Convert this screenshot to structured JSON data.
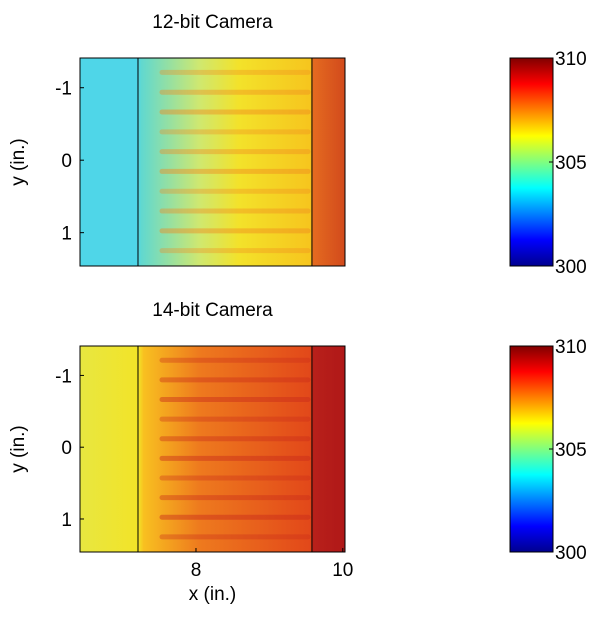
{
  "chart_data": [
    {
      "type": "heatmap",
      "title": "12-bit Camera",
      "ylabel": "y (in.)",
      "colormap": "jet",
      "xlim": [
        6.42,
        10.03
      ],
      "ylim": [
        -1.41,
        1.46
      ],
      "yticks": [
        -1,
        0,
        1
      ],
      "y_reversed": true,
      "vlines": [
        7.21,
        9.58
      ],
      "colorbar": {
        "clim": [
          300,
          310
        ],
        "ticks": [
          300,
          305,
          310
        ]
      }
    },
    {
      "type": "heatmap",
      "title": "14-bit Camera",
      "ylabel": "y (in.)",
      "xlabel": "x (in.)",
      "colormap": "jet",
      "xlim": [
        6.42,
        10.03
      ],
      "ylim": [
        -1.41,
        1.46
      ],
      "xticks": [
        8,
        10
      ],
      "yticks": [
        -1,
        0,
        1
      ],
      "y_reversed": true,
      "vlines": [
        7.21,
        9.58
      ],
      "colorbar": {
        "clim": [
          300,
          310
        ],
        "ticks": [
          300,
          305,
          310
        ]
      }
    }
  ]
}
